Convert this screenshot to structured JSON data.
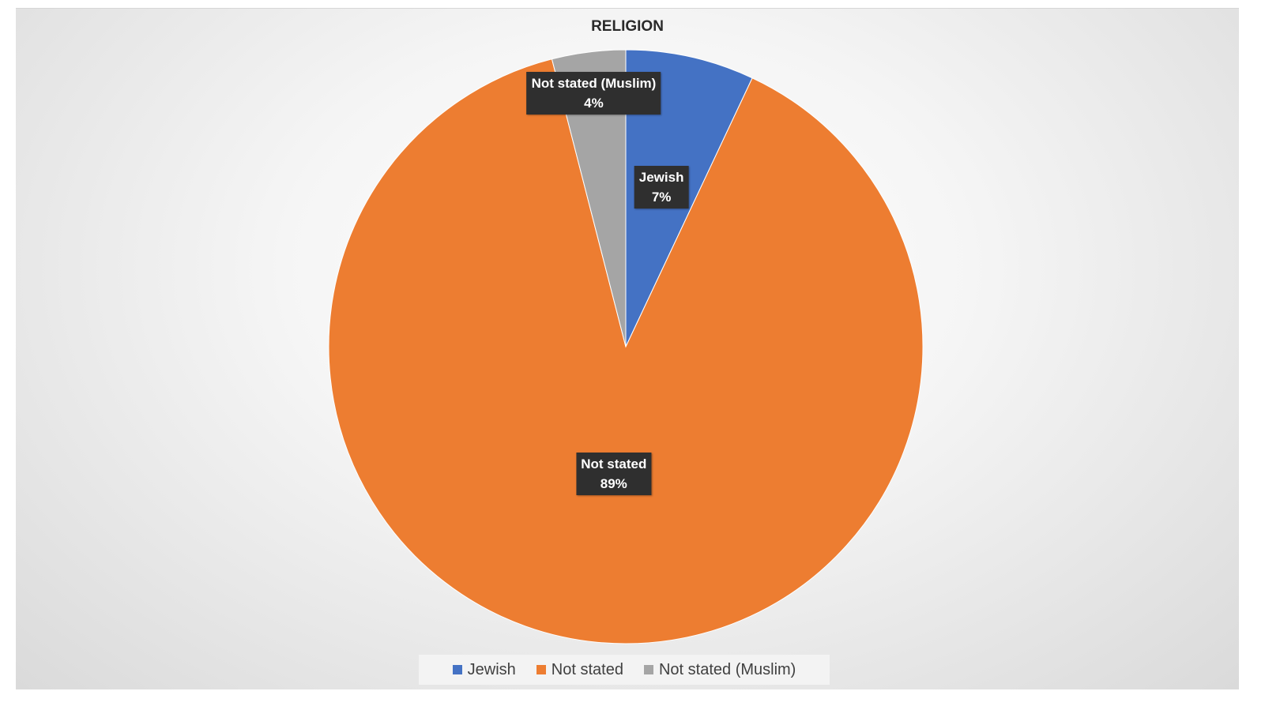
{
  "chart_data": {
    "type": "pie",
    "title": "RELIGION",
    "categories": [
      "Jewish",
      "Not stated",
      "Not stated (Muslim)"
    ],
    "values": [
      7,
      89,
      4
    ],
    "unit": "%",
    "colors": [
      "#4472C4",
      "#ED7D31",
      "#A5A5A5"
    ],
    "slice_labels": [
      {
        "name": "Jewish",
        "pct": "7%"
      },
      {
        "name": "Not stated",
        "pct": "89%"
      },
      {
        "name": "Not stated (Muslim)",
        "pct": "4%"
      }
    ],
    "legend_position": "bottom"
  }
}
